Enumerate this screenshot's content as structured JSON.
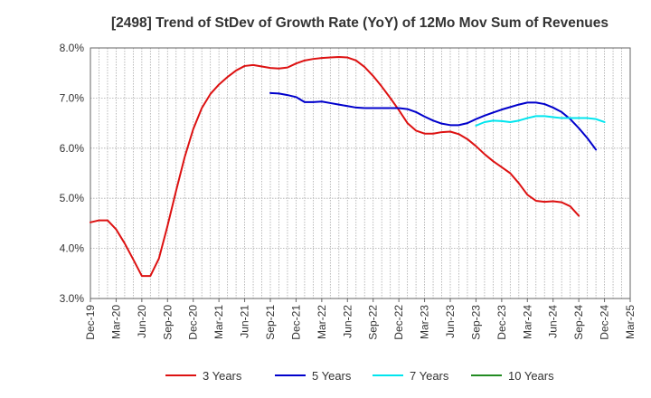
{
  "chart_data": {
    "type": "line",
    "title": "[2498]  Trend of StDev of Growth Rate (YoY) of 12Mo Mov Sum of Revenues",
    "xlabel": "",
    "ylabel": "",
    "ylim": [
      3.0,
      8.0
    ],
    "yticks": [
      "3.0%",
      "4.0%",
      "5.0%",
      "6.0%",
      "7.0%",
      "8.0%"
    ],
    "ytick_values": [
      3.0,
      4.0,
      5.0,
      6.0,
      7.0,
      8.0
    ],
    "x_tick_labels": [
      "Dec-19",
      "Mar-20",
      "Jun-20",
      "Sep-20",
      "Dec-20",
      "Mar-21",
      "Jun-21",
      "Sep-21",
      "Dec-21",
      "Mar-22",
      "Jun-22",
      "Sep-22",
      "Dec-22",
      "Mar-23",
      "Jun-23",
      "Sep-23",
      "Dec-23",
      "Mar-24",
      "Jun-24",
      "Sep-24",
      "Dec-24",
      "Mar-25"
    ],
    "x_start": "Dec-19",
    "x_months": 63,
    "grid": true,
    "legend_position": "bottom",
    "series": [
      {
        "name": "3 Years",
        "color": "#dd1111",
        "start_month_index": 0,
        "values": [
          4.52,
          4.56,
          4.56,
          4.38,
          4.1,
          3.78,
          3.45,
          3.45,
          3.8,
          4.45,
          5.15,
          5.82,
          6.38,
          6.8,
          7.08,
          7.27,
          7.42,
          7.55,
          7.64,
          7.66,
          7.63,
          7.6,
          7.59,
          7.61,
          7.69,
          7.75,
          7.78,
          7.8,
          7.81,
          7.82,
          7.81,
          7.75,
          7.62,
          7.44,
          7.23,
          7.0,
          6.76,
          6.5,
          6.35,
          6.29,
          6.29,
          6.32,
          6.33,
          6.28,
          6.18,
          6.04,
          5.88,
          5.74,
          5.62,
          5.5,
          5.3,
          5.07,
          4.95,
          4.93,
          4.94,
          4.92,
          4.84,
          4.65
        ]
      },
      {
        "name": "5 Years",
        "color": "#0000cc",
        "start_month_index": 21,
        "values": [
          7.1,
          7.09,
          7.06,
          7.02,
          6.92,
          6.92,
          6.93,
          6.9,
          6.87,
          6.84,
          6.81,
          6.8,
          6.8,
          6.8,
          6.8,
          6.8,
          6.78,
          6.72,
          6.63,
          6.55,
          6.49,
          6.46,
          6.46,
          6.5,
          6.58,
          6.65,
          6.71,
          6.77,
          6.82,
          6.87,
          6.91,
          6.91,
          6.88,
          6.81,
          6.72,
          6.58,
          6.4,
          6.2,
          5.97
        ]
      },
      {
        "name": "7 Years",
        "color": "#00e5ee",
        "start_month_index": 45,
        "values": [
          6.45,
          6.52,
          6.55,
          6.54,
          6.52,
          6.55,
          6.6,
          6.64,
          6.64,
          6.62,
          6.6,
          6.6,
          6.6,
          6.6,
          6.58,
          6.52
        ]
      },
      {
        "name": "10 Years",
        "color": "#228B22",
        "start_month_index": null,
        "values": []
      }
    ]
  }
}
